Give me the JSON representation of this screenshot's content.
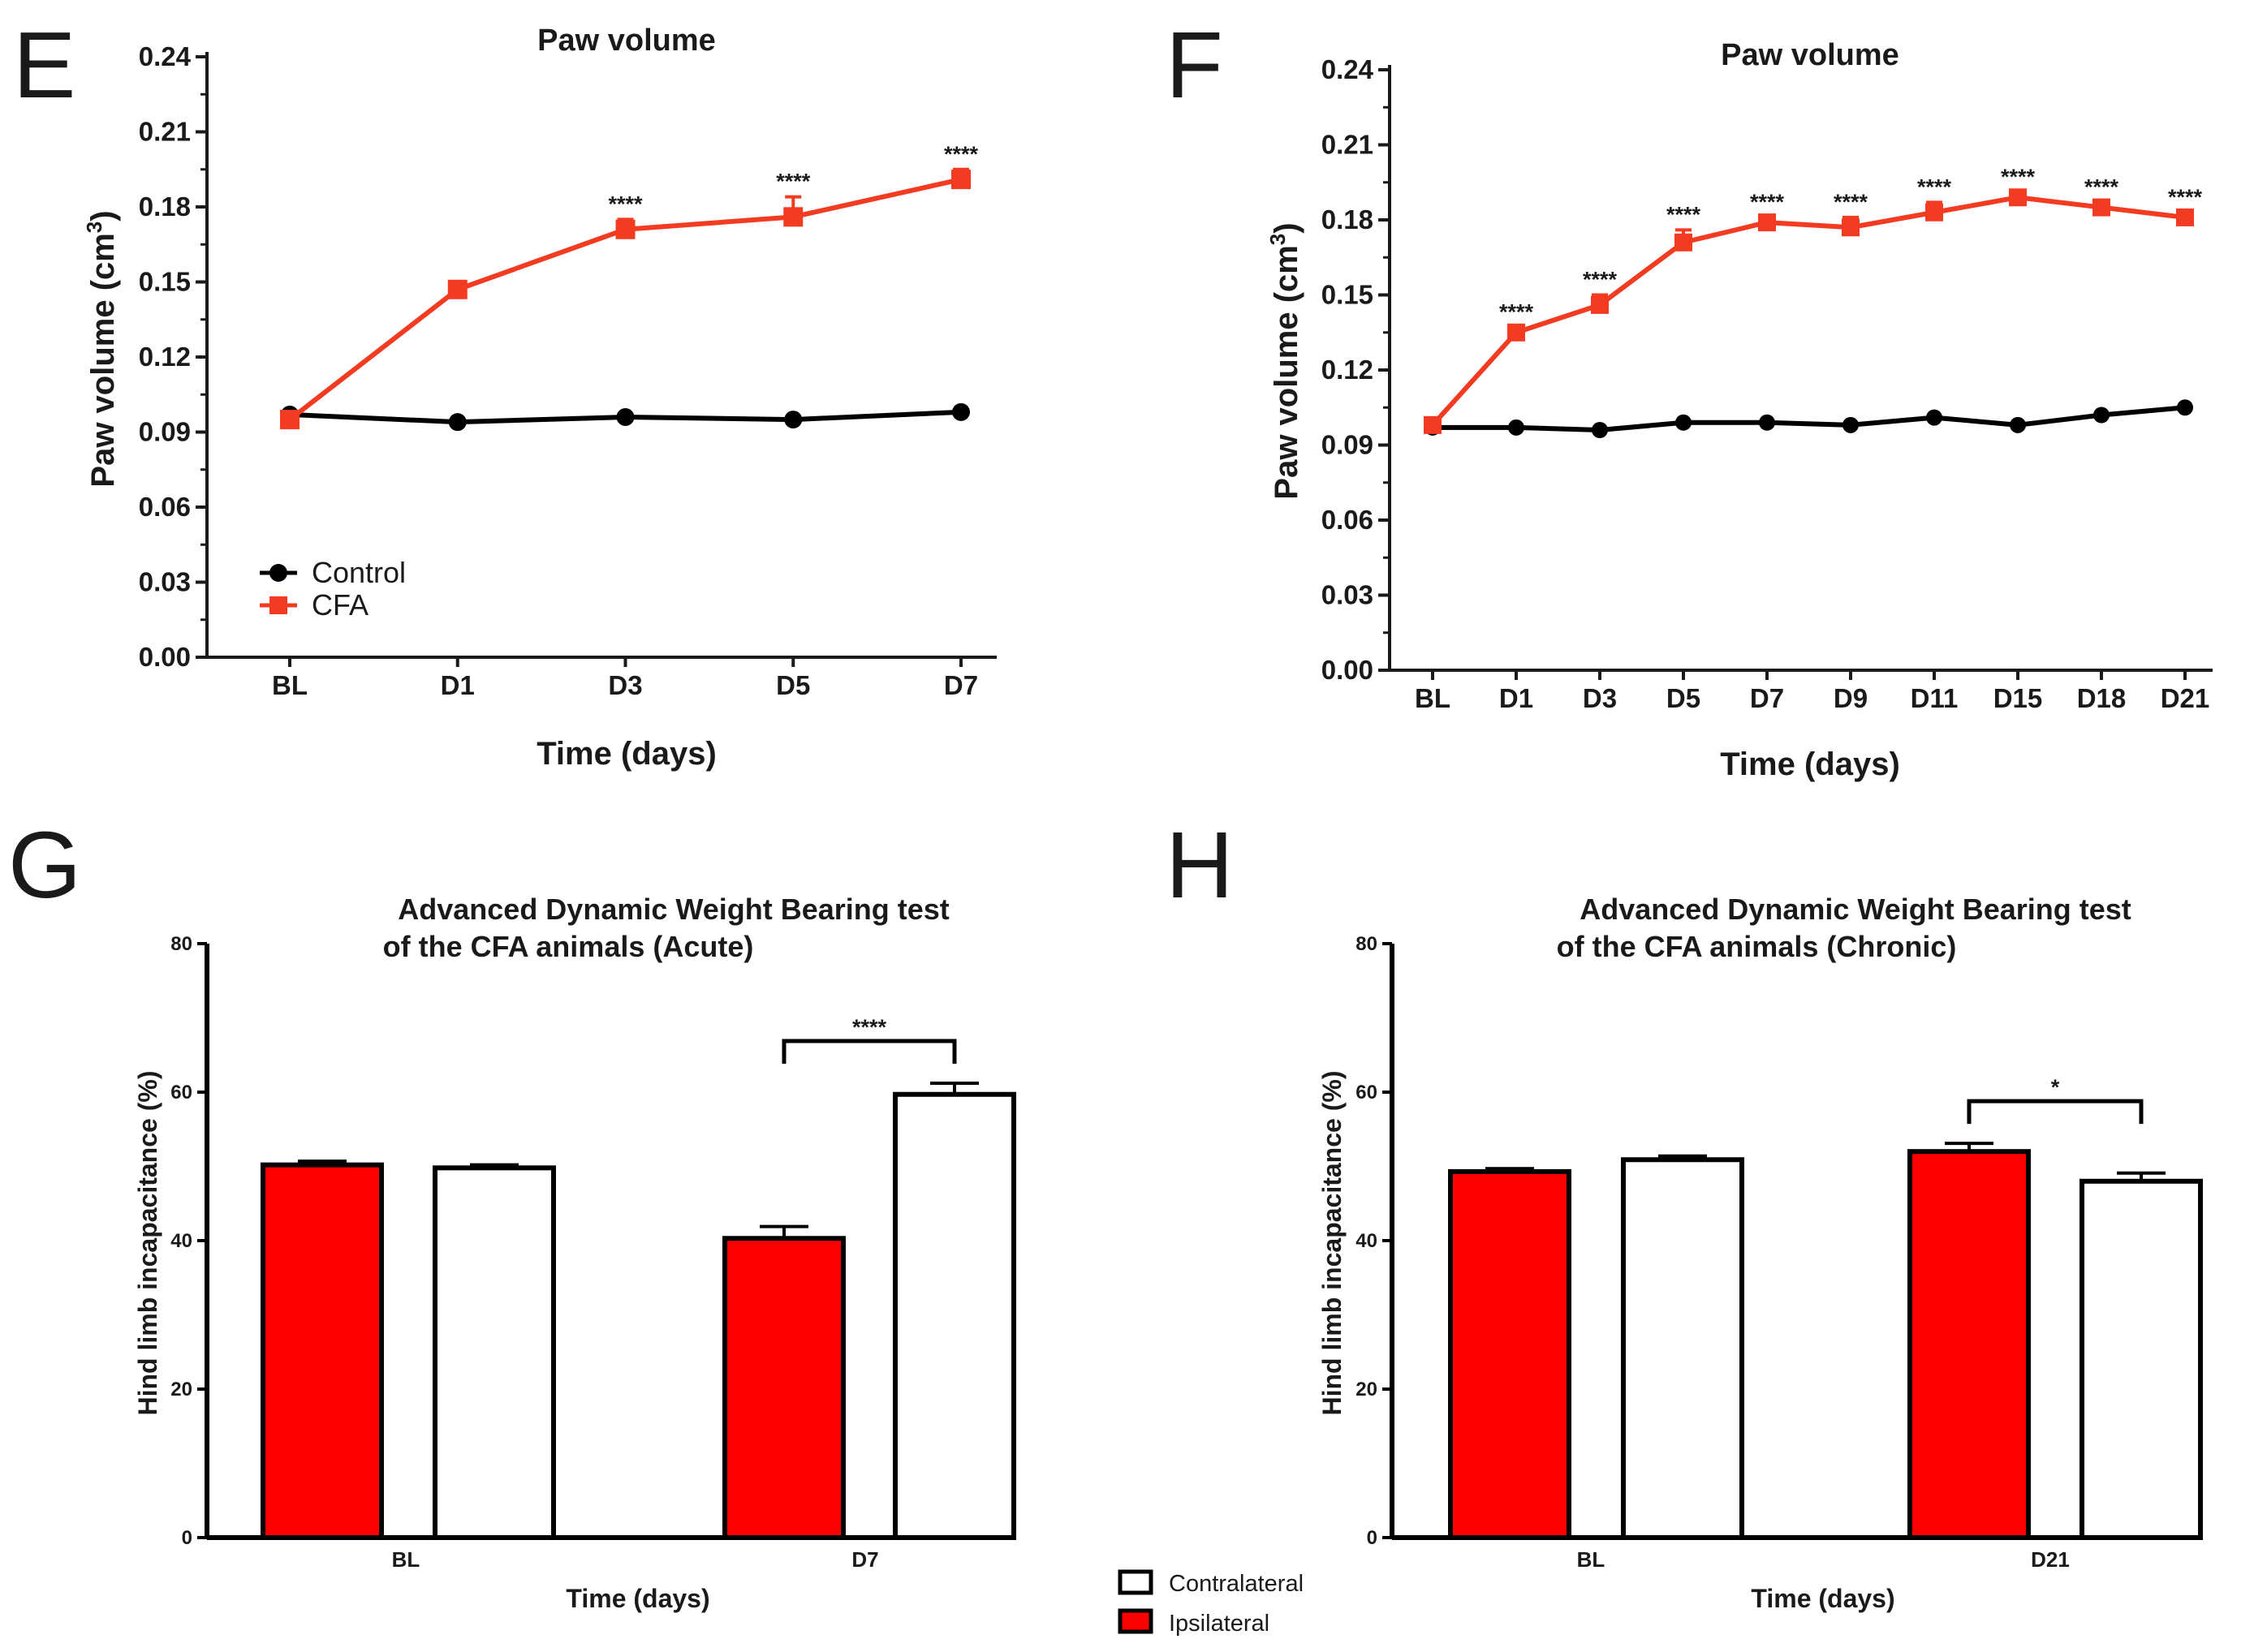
{
  "colors": {
    "cfa": "#f23b20",
    "control": "#000000",
    "ipsilateral": "#ff0000",
    "contralateral": "#ffffff",
    "axis": "#1a1a1a"
  },
  "chart_data": [
    {
      "panel": "E",
      "type": "line",
      "title": "Paw volume",
      "xlabel": "Time (days)",
      "ylabel": "Paw volume (cm",
      "ylabel_sup": "3",
      "ylabel_close": ")",
      "ylim": [
        0,
        0.24
      ],
      "yticks": [
        "0.00",
        "0.03",
        "0.06",
        "0.09",
        "0.12",
        "0.15",
        "0.18",
        "0.21",
        "0.24"
      ],
      "categories": [
        "BL",
        "D1",
        "D3",
        "D5",
        "D7"
      ],
      "series": [
        {
          "name": "Control",
          "color": "#000000",
          "marker": "circle",
          "values": [
            0.097,
            0.094,
            0.096,
            0.095,
            0.098
          ],
          "errors": [
            0.001,
            0.001,
            0.001,
            0.001,
            0.001
          ]
        },
        {
          "name": "CFA",
          "color": "#f23b20",
          "marker": "square",
          "values": [
            0.095,
            0.147,
            0.171,
            0.176,
            0.191
          ],
          "errors": [
            0.001,
            0.002,
            0.004,
            0.008,
            0.004
          ]
        }
      ],
      "significance": [
        "",
        "",
        "****",
        "****",
        "****"
      ],
      "legend_position": "bottom-left"
    },
    {
      "panel": "F",
      "type": "line",
      "title": "Paw volume",
      "xlabel": "Time (days)",
      "ylabel": "Paw volume (cm",
      "ylabel_sup": "3",
      "ylabel_close": ")",
      "ylim": [
        0,
        0.24
      ],
      "yticks": [
        "0.00",
        "0.03",
        "0.06",
        "0.09",
        "0.12",
        "0.15",
        "0.18",
        "0.21",
        "0.24"
      ],
      "categories": [
        "BL",
        "D1",
        "D3",
        "D5",
        "D7",
        "D9",
        "D11",
        "D15",
        "D18",
        "D21"
      ],
      "series": [
        {
          "name": "Control",
          "color": "#000000",
          "marker": "circle",
          "values": [
            0.097,
            0.097,
            0.096,
            0.099,
            0.099,
            0.098,
            0.101,
            0.098,
            0.102,
            0.105
          ],
          "errors": [
            0.001,
            0.001,
            0.001,
            0.001,
            0.001,
            0.001,
            0.001,
            0.001,
            0.001,
            0.001
          ]
        },
        {
          "name": "CFA",
          "color": "#f23b20",
          "marker": "square",
          "values": [
            0.098,
            0.135,
            0.146,
            0.171,
            0.179,
            0.177,
            0.183,
            0.189,
            0.185,
            0.181
          ],
          "errors": [
            0.001,
            0.002,
            0.004,
            0.005,
            0.002,
            0.004,
            0.004,
            0.002,
            0.002,
            0.002
          ]
        }
      ],
      "significance": [
        "",
        "****",
        "****",
        "****",
        "****",
        "****",
        "****",
        "****",
        "****",
        "****"
      ]
    },
    {
      "panel": "G",
      "type": "bar",
      "title_line1": "Advanced Dynamic Weight Bearing test",
      "title_line2": "of the CFA animals (Acute)",
      "xlabel": "Time (days)",
      "ylabel": "Hind limb incapacitance (%)",
      "ylim": [
        0,
        80
      ],
      "yticks": [
        "0",
        "20",
        "40",
        "60",
        "80"
      ],
      "categories": [
        "BL",
        "D7"
      ],
      "series": [
        {
          "name": "Ipsilateral",
          "color": "#ff0000",
          "values": [
            50.2,
            40.3
          ],
          "errors": [
            0.5,
            1.6
          ]
        },
        {
          "name": "Contralateral",
          "color": "#ffffff",
          "values": [
            49.8,
            59.7
          ],
          "errors": [
            0.4,
            1.5
          ]
        }
      ],
      "comparison": {
        "category": "D7",
        "label": "****"
      }
    },
    {
      "panel": "H",
      "type": "bar",
      "title_line1": "Advanced Dynamic Weight Bearing test",
      "title_line2": "of the CFA animals (Chronic)",
      "xlabel": "Time (days)",
      "ylabel": "Hind limb incapacitance (%)",
      "ylim": [
        0,
        80
      ],
      "yticks": [
        "0",
        "20",
        "40",
        "60",
        "80"
      ],
      "categories": [
        "BL",
        "D21"
      ],
      "series": [
        {
          "name": "Ipsilateral",
          "color": "#ff0000",
          "values": [
            49.3,
            52.0
          ],
          "errors": [
            0.4,
            1.1
          ]
        },
        {
          "name": "Contralateral",
          "color": "#ffffff",
          "values": [
            50.9,
            48.0
          ],
          "errors": [
            0.5,
            1.1
          ]
        }
      ],
      "comparison": {
        "category": "D21",
        "label": "*"
      }
    }
  ],
  "shared_legend": {
    "items": [
      "Contralateral",
      "Ipsilateral"
    ]
  }
}
